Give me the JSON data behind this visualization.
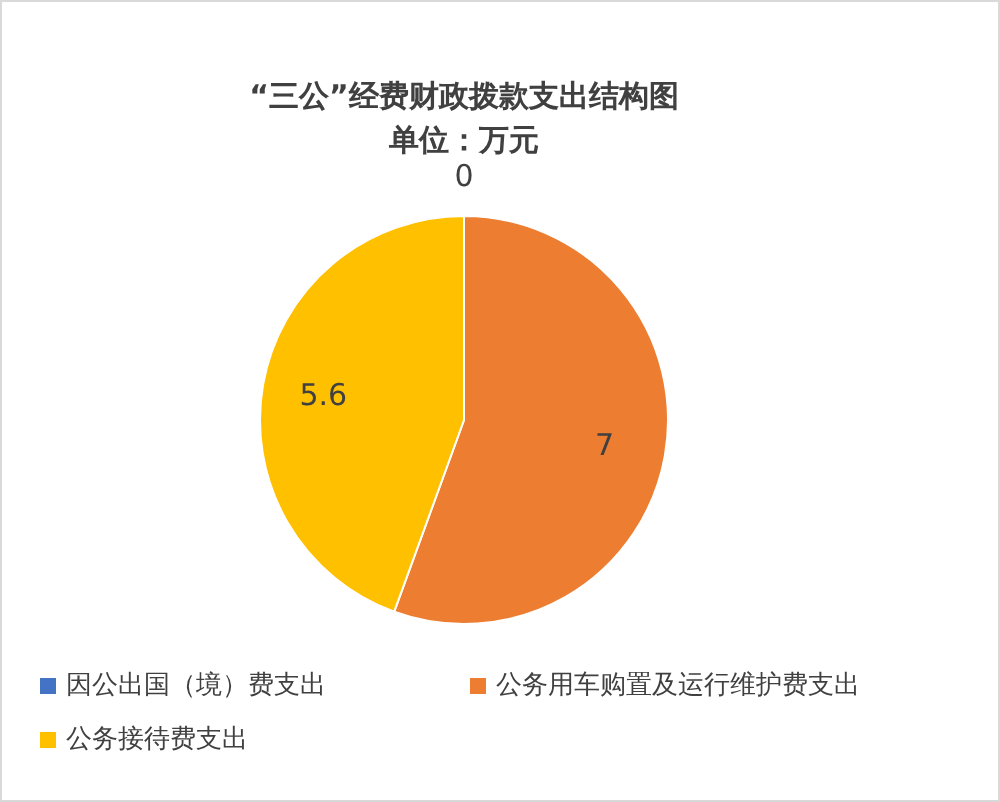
{
  "chart_data": {
    "type": "pie",
    "title": "“三公”经费财政拨款支出结构图",
    "subtitle": "单位：万元",
    "categories": [
      "因公出国（境）费支出",
      "公务用车购置及运行维护费支出",
      "公务接待费支出"
    ],
    "values": [
      0,
      7,
      5.6
    ],
    "colors": [
      "#4472c4",
      "#ed7d31",
      "#ffc000"
    ],
    "value_labels": [
      "0",
      "7",
      "5.6"
    ],
    "legend": "bottom"
  }
}
